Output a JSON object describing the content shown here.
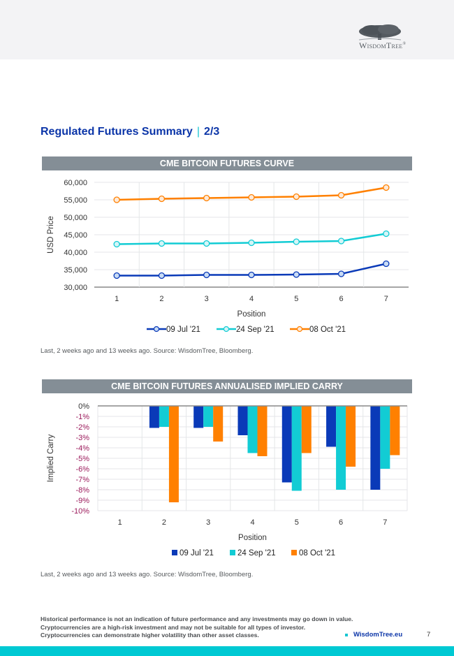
{
  "header": {
    "brand": "WisdomTree",
    "registered_mark": "®"
  },
  "page": {
    "title": "Regulated Futures Summary",
    "title_separator": "|",
    "title_page": "2/3"
  },
  "line_section": {
    "heading": "CME BITCOIN FUTURES CURVE",
    "source": "Last, 2 weeks ago and 13 weeks ago. Source: WisdomTree, Bloomberg."
  },
  "bar_section": {
    "heading": "CME BITCOIN FUTURES ANNUALISED IMPLIED CARRY",
    "source": "Last, 2 weeks ago and 13 weeks ago. Source: WisdomTree, Bloomberg."
  },
  "colors": {
    "series1": "#0a3ab8",
    "series2": "#12ccd4",
    "series3": "#ff8000",
    "brand_blue": "#0b35a8",
    "accent_cyan": "#00c9d3",
    "negative_label": "#9b1a5b"
  },
  "chart_data": [
    {
      "type": "line",
      "title": "CME BITCOIN FUTURES CURVE",
      "xlabel": "Position",
      "ylabel": "USD Price",
      "categories": [
        "1",
        "2",
        "3",
        "4",
        "5",
        "6",
        "7"
      ],
      "ylim": [
        30000,
        60000
      ],
      "yticks": [
        30000,
        35000,
        40000,
        45000,
        50000,
        55000,
        60000
      ],
      "ytick_labels": [
        "30,000",
        "35,000",
        "40,000",
        "45,000",
        "50,000",
        "55,000",
        "60,000"
      ],
      "grid": true,
      "legend": "bottom",
      "series": [
        {
          "name": "09 Jul '21",
          "values": [
            33300,
            33300,
            33500,
            33500,
            33600,
            33800,
            36700
          ]
        },
        {
          "name": "24 Sep '21",
          "values": [
            42300,
            42500,
            42500,
            42700,
            43000,
            43200,
            45300
          ]
        },
        {
          "name": "08 Oct '21",
          "values": [
            55000,
            55300,
            55500,
            55700,
            55900,
            56300,
            58500
          ]
        }
      ]
    },
    {
      "type": "bar",
      "title": "CME BITCOIN FUTURES ANNUALISED IMPLIED CARRY",
      "xlabel": "Position",
      "ylabel": "Implied Carry",
      "categories": [
        "1",
        "2",
        "3",
        "4",
        "5",
        "6",
        "7"
      ],
      "ylim": [
        -10,
        0
      ],
      "yticks": [
        0,
        -1,
        -2,
        -3,
        -4,
        -5,
        -6,
        -7,
        -8,
        -9,
        -10
      ],
      "ytick_labels": [
        "0%",
        "-1%",
        "-2%",
        "-3%",
        "-4%",
        "-5%",
        "-6%",
        "-7%",
        "-8%",
        "-9%",
        "-10%"
      ],
      "unit": "%",
      "grid": true,
      "legend": "bottom",
      "series": [
        {
          "name": "09 Jul '21",
          "values": [
            null,
            -2.1,
            -2.1,
            -2.8,
            -7.3,
            -3.9,
            -8.0
          ]
        },
        {
          "name": "24 Sep '21",
          "values": [
            null,
            -2.0,
            -2.0,
            -4.5,
            -8.1,
            -8.0,
            -6.0
          ]
        },
        {
          "name": "08 Oct '21",
          "values": [
            null,
            -9.2,
            -3.4,
            -4.8,
            -4.5,
            -5.8,
            -4.7
          ]
        }
      ]
    }
  ],
  "footer": {
    "disclaimer": [
      "Historical performance is not an indication of future performance and any investments may go down in value.",
      "Cryptocurrencies are a high-risk investment and may not be suitable for all types of investor.",
      "Cryptocurrencies can demonstrate higher volatility than other asset classes."
    ],
    "website": "WisdomTree.eu",
    "page_number": "7"
  }
}
